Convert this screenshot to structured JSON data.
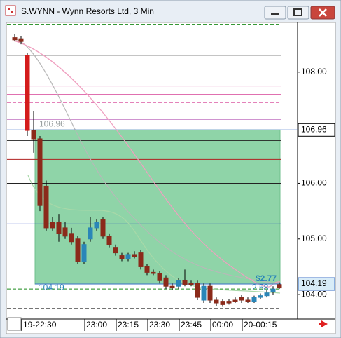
{
  "chart_data": {
    "type": "candlestick",
    "title": "S.WYNN - Wynn Resorts Ltd, 3 Min",
    "categories": [
      null,
      null,
      "19-22:30",
      null,
      null,
      null,
      null,
      null,
      null,
      null,
      null,
      null,
      "23:00",
      null,
      null,
      null,
      null,
      "23:15",
      null,
      null,
      null,
      null,
      "23:30",
      null,
      null,
      null,
      null,
      "23:45",
      null,
      null,
      null,
      null,
      "00:00",
      null,
      null,
      null,
      null,
      "20-00:15",
      null,
      null,
      null,
      null,
      null
    ],
    "open": [
      108.62,
      108.6,
      108.3,
      106.95,
      106.8,
      105.95,
      105.3,
      105.3,
      105.2,
      105.1,
      105.0,
      104.6,
      105.0,
      105.2,
      105.35,
      105.05,
      104.85,
      104.7,
      104.65,
      104.72,
      104.75,
      104.5,
      104.4,
      104.38,
      104.3,
      104.15,
      104.15,
      104.25,
      104.2,
      104.2,
      103.9,
      104.15,
      103.9,
      103.88,
      103.88,
      103.9,
      103.95,
      103.9,
      103.88,
      103.95,
      103.98,
      104.05,
      104.18
    ],
    "high": [
      108.68,
      108.65,
      108.35,
      107.3,
      106.85,
      106.05,
      105.4,
      105.45,
      105.3,
      105.2,
      105.05,
      104.95,
      105.4,
      105.35,
      105.4,
      105.1,
      104.9,
      104.75,
      104.75,
      104.78,
      104.8,
      104.55,
      104.45,
      104.42,
      104.35,
      104.2,
      104.3,
      104.45,
      104.25,
      104.25,
      104.2,
      104.2,
      103.95,
      103.92,
      103.92,
      103.95,
      104.0,
      103.95,
      103.98,
      104.02,
      104.08,
      104.15,
      104.22
    ],
    "low": [
      108.55,
      108.5,
      106.85,
      106.55,
      105.5,
      105.15,
      105.15,
      104.95,
      105.0,
      104.9,
      104.55,
      104.55,
      104.95,
      105.15,
      105.0,
      104.85,
      104.7,
      104.6,
      104.6,
      104.65,
      104.45,
      104.35,
      104.35,
      104.2,
      104.1,
      104.08,
      104.1,
      104.15,
      104.15,
      103.9,
      103.85,
      103.85,
      103.8,
      103.78,
      103.82,
      103.85,
      103.85,
      103.85,
      103.85,
      103.92,
      103.95,
      104.0,
      104.1
    ],
    "close": [
      108.58,
      108.55,
      106.95,
      106.8,
      105.6,
      105.2,
      105.2,
      105.1,
      105.05,
      104.95,
      104.6,
      104.9,
      105.2,
      105.3,
      105.05,
      104.9,
      104.75,
      104.65,
      104.72,
      104.68,
      104.5,
      104.4,
      104.38,
      104.25,
      104.15,
      104.12,
      104.25,
      104.18,
      104.18,
      103.95,
      104.15,
      103.9,
      103.85,
      103.82,
      103.85,
      103.88,
      103.9,
      103.88,
      103.95,
      103.98,
      104.03,
      104.1,
      104.12
    ],
    "up_color": "#2a86b8",
    "down_color": "#8b2a1a",
    "ylim": [
      103.56,
      108.88
    ],
    "yticks": [
      {
        "value": 104,
        "label": "104.00"
      },
      {
        "value": 105,
        "label": "105.00"
      },
      {
        "value": 106,
        "label": "106.00"
      },
      {
        "value": 108,
        "label": "108.00"
      }
    ],
    "levels": [
      {
        "value": 106.96,
        "label": "106.96"
      },
      {
        "value": 104.19,
        "label": "104.19"
      }
    ],
    "zone_color": "#8fd4a8",
    "annotations": [
      "$2.77",
      "2.58"
    ],
    "lines": [
      {
        "value": 108.86,
        "color": "#1a8a1a"
      },
      {
        "value": 108.3,
        "color": "#888888"
      },
      {
        "value": 107.75,
        "color": "#e070b0"
      },
      {
        "value": 107.6,
        "color": "#e070b0"
      },
      {
        "value": 107.45,
        "color": "#e070b0"
      },
      {
        "value": 107.15,
        "color": "#c070c0"
      },
      {
        "value": 106.77,
        "color": "#222222"
      },
      {
        "value": 106.43,
        "color": "#b02020"
      },
      {
        "value": 106.0,
        "color": "#222222"
      },
      {
        "value": 105.27,
        "color": "#1030c0"
      },
      {
        "value": 104.55,
        "color": "#e070b0"
      },
      {
        "value": 104.1,
        "color": "#1a8a1a"
      },
      {
        "value": 103.75,
        "color": "#222222"
      }
    ]
  }
}
